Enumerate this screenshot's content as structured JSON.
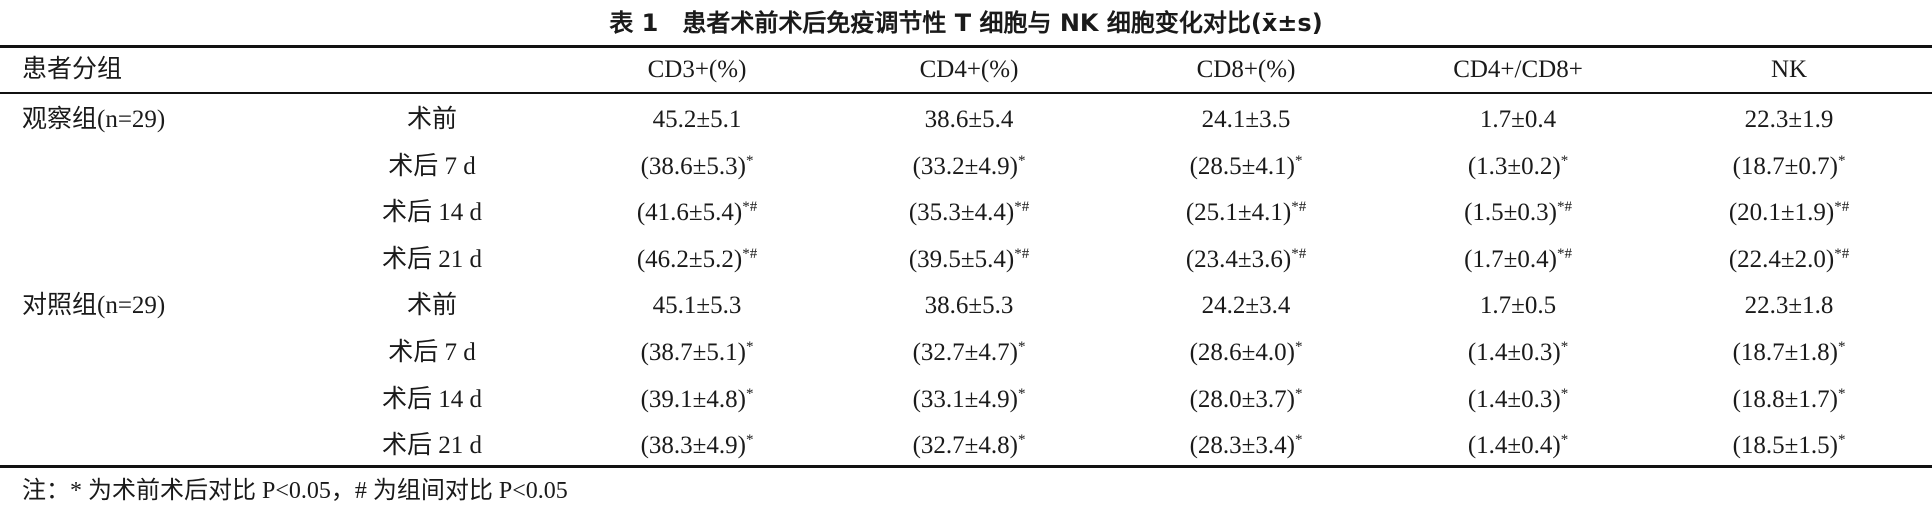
{
  "title": "表 1　患者术前术后免疫调节性 T 细胞与 NK 细胞变化对比(x̄±s)",
  "header": {
    "group": "患者分组",
    "columns": [
      "CD3+(%)",
      "CD4+(%)",
      "CD8+(%)",
      "CD4+/CD8+",
      "NK"
    ]
  },
  "groups": [
    {
      "label": "观察组(n=29)",
      "rows": [
        {
          "time": "术前",
          "cells": [
            "45.2±5.1",
            "38.6±5.4",
            "24.1±3.5",
            "1.7±0.4",
            "22.3±1.9"
          ]
        },
        {
          "time": "术后 7 d",
          "cells": [
            {
              "text": "(38.6±5.3)",
              "sup": "*"
            },
            {
              "text": "(33.2±4.9)",
              "sup": "*"
            },
            {
              "text": "(28.5±4.1)",
              "sup": "*"
            },
            {
              "text": "(1.3±0.2)",
              "sup": "*"
            },
            {
              "text": "(18.7±0.7)",
              "sup": "*"
            }
          ]
        },
        {
          "time": "术后 14 d",
          "cells": [
            {
              "text": "(41.6±5.4)",
              "sup": "*#"
            },
            {
              "text": "(35.3±4.4)",
              "sup": "*#"
            },
            {
              "text": "(25.1±4.1)",
              "sup": "*#"
            },
            {
              "text": "(1.5±0.3)",
              "sup": "*#"
            },
            {
              "text": "(20.1±1.9)",
              "sup": "*#"
            }
          ]
        },
        {
          "time": "术后 21 d",
          "cells": [
            {
              "text": "(46.2±5.2)",
              "sup": "*#"
            },
            {
              "text": "(39.5±5.4)",
              "sup": "*#"
            },
            {
              "text": "(23.4±3.6)",
              "sup": "*#"
            },
            {
              "text": "(1.7±0.4)",
              "sup": "*#"
            },
            {
              "text": "(22.4±2.0)",
              "sup": "*#"
            }
          ]
        }
      ]
    },
    {
      "label": "对照组(n=29)",
      "rows": [
        {
          "time": "术前",
          "cells": [
            "45.1±5.3",
            "38.6±5.3",
            "24.2±3.4",
            "1.7±0.5",
            "22.3±1.8"
          ]
        },
        {
          "time": "术后 7 d",
          "cells": [
            {
              "text": "(38.7±5.1)",
              "sup": "*"
            },
            {
              "text": "(32.7±4.7)",
              "sup": "*"
            },
            {
              "text": "(28.6±4.0)",
              "sup": "*"
            },
            {
              "text": "(1.4±0.3)",
              "sup": "*"
            },
            {
              "text": "(18.7±1.8)",
              "sup": "*"
            }
          ]
        },
        {
          "time": "术后 14 d",
          "cells": [
            {
              "text": "(39.1±4.8)",
              "sup": "*"
            },
            {
              "text": "(33.1±4.9)",
              "sup": "*"
            },
            {
              "text": "(28.0±3.7)",
              "sup": "*"
            },
            {
              "text": "(1.4±0.3)",
              "sup": "*"
            },
            {
              "text": "(18.8±1.7)",
              "sup": "*"
            }
          ]
        },
        {
          "time": "术后 21 d",
          "cells": [
            {
              "text": "(38.3±4.9)",
              "sup": "*"
            },
            {
              "text": "(32.7±4.8)",
              "sup": "*"
            },
            {
              "text": "(28.3±3.4)",
              "sup": "*"
            },
            {
              "text": "(1.4±0.4)",
              "sup": "*"
            },
            {
              "text": "(18.5±1.5)",
              "sup": "*"
            }
          ]
        }
      ]
    }
  ],
  "footnote": "注：* 为术前术后对比 P<0.05，# 为组间对比 P<0.05"
}
